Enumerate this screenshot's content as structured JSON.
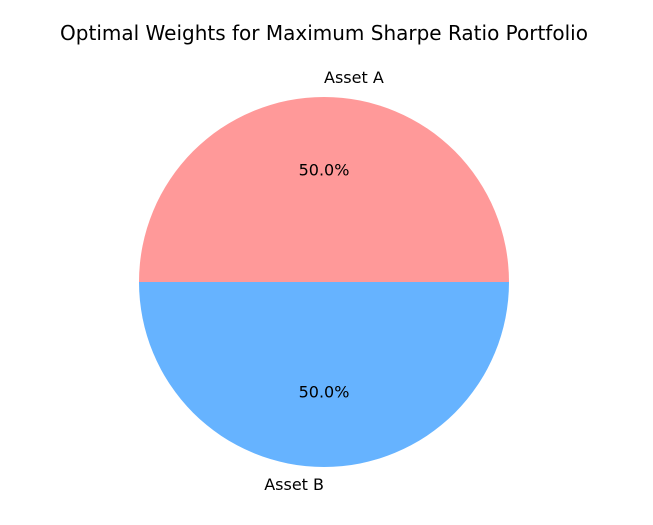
{
  "chart_data": {
    "type": "pie",
    "title": "Optimal Weights for Maximum Sharpe Ratio Portfolio",
    "categories": [
      "Asset A",
      "Asset B"
    ],
    "values": [
      0.5,
      0.5
    ],
    "percent_labels": [
      "50.0%",
      "50.0%"
    ],
    "colors": [
      "#ff9999",
      "#66b3ff"
    ],
    "start_angle_deg": 0,
    "direction": "counterclockwise"
  }
}
